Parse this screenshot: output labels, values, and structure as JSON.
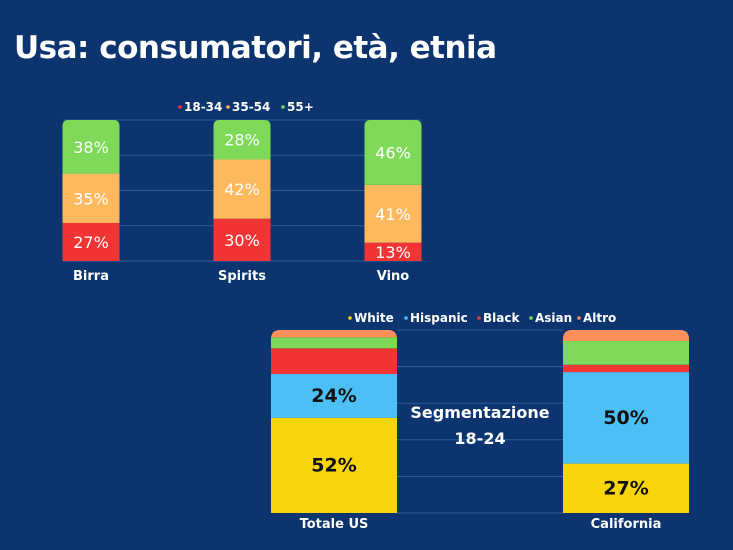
{
  "title": "Usa: consumatori, età, etnia",
  "chart_data": [
    {
      "type": "bar",
      "stacked": true,
      "normalized": true,
      "categories": [
        "Birra",
        "Spirits",
        "Vino"
      ],
      "series": [
        {
          "name": "18-34",
          "color": "#f33434",
          "values": [
            27,
            30,
            13
          ],
          "labels": [
            "27%",
            "30%",
            "13%"
          ]
        },
        {
          "name": "35-54",
          "color": "#feb95e",
          "values": [
            35,
            42,
            41
          ],
          "labels": [
            "35%",
            "42%",
            "41%"
          ]
        },
        {
          "name": "55+",
          "color": "#7ed958",
          "values": [
            38,
            28,
            46
          ],
          "labels": [
            "38%",
            "28%",
            "46%"
          ]
        }
      ],
      "legend_position": "top-center",
      "grid": true
    },
    {
      "type": "bar",
      "stacked": true,
      "normalized": true,
      "categories": [
        "Totale US",
        "California"
      ],
      "series": [
        {
          "name": "White",
          "color": "#f8d50c",
          "values": [
            52,
            27
          ],
          "labels": [
            "52%",
            "27%"
          ]
        },
        {
          "name": "Hispanic",
          "color": "#4cc0f5",
          "values": [
            24,
            50
          ],
          "labels": [
            "24%",
            "50%"
          ]
        },
        {
          "name": "Black",
          "color": "#f33434",
          "values": [
            14,
            4
          ],
          "labels": [
            "",
            ""
          ]
        },
        {
          "name": "Asian",
          "color": "#7ed958",
          "values": [
            6,
            13
          ],
          "labels": [
            "",
            ""
          ]
        },
        {
          "name": "Altro",
          "color": "#fe8e5a",
          "values": [
            4,
            6
          ],
          "labels": [
            "",
            ""
          ]
        }
      ],
      "legend_position": "top-center",
      "annotation": [
        "Segmentazione",
        "18-24"
      ],
      "grid": true
    }
  ]
}
